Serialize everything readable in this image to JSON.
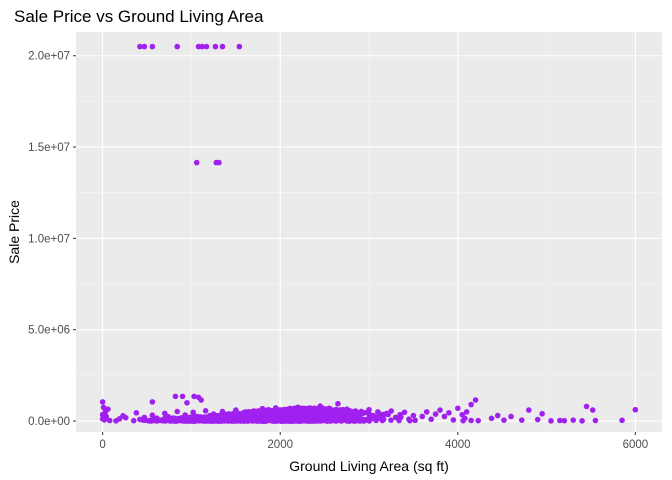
{
  "chart_data": {
    "type": "scatter",
    "title": "Sale Price vs Ground Living Area",
    "xlabel": "Ground Living Area (sq ft)",
    "ylabel": "Sale Price",
    "xlim": [
      -300,
      6300
    ],
    "ylim": [
      -600000,
      21300000
    ],
    "x_ticks": [
      0,
      2000,
      4000,
      6000
    ],
    "x_tick_labels": [
      "0",
      "2000",
      "4000",
      "6000"
    ],
    "y_ticks": [
      0,
      5000000,
      10000000,
      15000000,
      20000000
    ],
    "y_tick_labels": [
      "0.0e+00",
      "5.0e+06",
      "1.0e+07",
      "1.5e+07",
      "2.0e+07"
    ],
    "grid": true,
    "legend": "none",
    "point_color": "#A020F0",
    "panel_background": "#EBEBEB",
    "series": [
      {
        "points": [
          [
            420,
            20500000
          ],
          [
            470,
            20500000
          ],
          [
            560,
            20500000
          ],
          [
            840,
            20500000
          ],
          [
            1080,
            20500000
          ],
          [
            1120,
            20500000
          ],
          [
            1170,
            20500000
          ],
          [
            1270,
            20500000
          ],
          [
            1350,
            20500000
          ],
          [
            1540,
            20500000
          ],
          [
            1060,
            14150000
          ],
          [
            1280,
            14150000
          ],
          [
            1310,
            14150000
          ],
          [
            820,
            1350000
          ],
          [
            900,
            1350000
          ],
          [
            1030,
            1350000
          ],
          [
            1080,
            1300000
          ],
          [
            560,
            1050000
          ],
          [
            950,
            1000000
          ],
          [
            1110,
            1150000
          ],
          [
            0,
            1050000
          ],
          [
            10,
            750000
          ],
          [
            60,
            650000
          ],
          [
            30,
            500000
          ],
          [
            0,
            350000
          ],
          [
            40,
            250000
          ],
          [
            0,
            120000
          ],
          [
            20,
            60000
          ],
          [
            80,
            30000
          ],
          [
            150,
            10000
          ],
          [
            190,
            120000
          ],
          [
            230,
            290000
          ],
          [
            260,
            180000
          ],
          [
            350,
            20000
          ],
          [
            380,
            450000
          ],
          [
            420,
            90000
          ],
          [
            470,
            200000
          ],
          [
            520,
            10000
          ],
          [
            560,
            320000
          ],
          [
            610,
            160000
          ],
          [
            650,
            40000
          ],
          [
            700,
            420000
          ],
          [
            740,
            230000
          ],
          [
            790,
            80000
          ],
          [
            840,
            520000
          ],
          [
            880,
            150000
          ],
          [
            930,
            330000
          ],
          [
            970,
            60000
          ],
          [
            1020,
            480000
          ],
          [
            1060,
            250000
          ],
          [
            1110,
            120000
          ],
          [
            1160,
            560000
          ],
          [
            1200,
            30000
          ],
          [
            1250,
            380000
          ],
          [
            1300,
            200000
          ],
          [
            1350,
            520000
          ],
          [
            1400,
            90000
          ],
          [
            1450,
            300000
          ],
          [
            1500,
            600000
          ],
          [
            1550,
            160000
          ],
          [
            1600,
            420000
          ],
          [
            1650,
            50000
          ],
          [
            1700,
            550000
          ],
          [
            1750,
            250000
          ],
          [
            1800,
            680000
          ],
          [
            1850,
            120000
          ],
          [
            1900,
            400000
          ],
          [
            1950,
            720000
          ],
          [
            2000,
            200000
          ],
          [
            2050,
            600000
          ],
          [
            2100,
            80000
          ],
          [
            2150,
            500000
          ],
          [
            2200,
            750000
          ],
          [
            2250,
            300000
          ],
          [
            2300,
            650000
          ],
          [
            2350,
            150000
          ],
          [
            2400,
            550000
          ],
          [
            2450,
            820000
          ],
          [
            2500,
            350000
          ],
          [
            2550,
            700000
          ],
          [
            2600,
            100000
          ],
          [
            2650,
            950000
          ],
          [
            2700,
            450000
          ],
          [
            2750,
            650000
          ],
          [
            2800,
            250000
          ],
          [
            2850,
            550000
          ],
          [
            2900,
            150000
          ],
          [
            2950,
            450000
          ],
          [
            3000,
            620000
          ],
          [
            3050,
            300000
          ],
          [
            3100,
            500000
          ],
          [
            3150,
            80000
          ],
          [
            3200,
            420000
          ],
          [
            3250,
            550000
          ],
          [
            3300,
            200000
          ],
          [
            3350,
            350000
          ],
          [
            3400,
            480000
          ],
          [
            3450,
            100000
          ],
          [
            3500,
            300000
          ],
          [
            3520,
            40000
          ],
          [
            3600,
            250000
          ],
          [
            3650,
            500000
          ],
          [
            3700,
            100000
          ],
          [
            3750,
            380000
          ],
          [
            3800,
            600000
          ],
          [
            3850,
            250000
          ],
          [
            3900,
            450000
          ],
          [
            3950,
            60000
          ],
          [
            4000,
            700000
          ],
          [
            4050,
            350000
          ],
          [
            4080,
            150000
          ],
          [
            4150,
            900000
          ],
          [
            4200,
            1150000
          ],
          [
            4100,
            500000
          ],
          [
            4450,
            300000
          ],
          [
            4520,
            50000
          ],
          [
            4600,
            250000
          ],
          [
            4720,
            50000
          ],
          [
            4800,
            600000
          ],
          [
            4900,
            80000
          ],
          [
            5050,
            10000
          ],
          [
            5200,
            20000
          ],
          [
            5300,
            50000
          ],
          [
            5400,
            10000
          ],
          [
            5450,
            800000
          ],
          [
            5520,
            600000
          ],
          [
            5550,
            30000
          ],
          [
            5850,
            40000
          ],
          [
            6000,
            620000
          ],
          [
            3460,
            20000
          ],
          [
            4060,
            20000
          ],
          [
            4230,
            20000
          ],
          [
            4950,
            400000
          ],
          [
            5150,
            30000
          ],
          [
            4380,
            150000
          ],
          [
            4150,
            30000
          ]
        ]
      }
    ]
  }
}
